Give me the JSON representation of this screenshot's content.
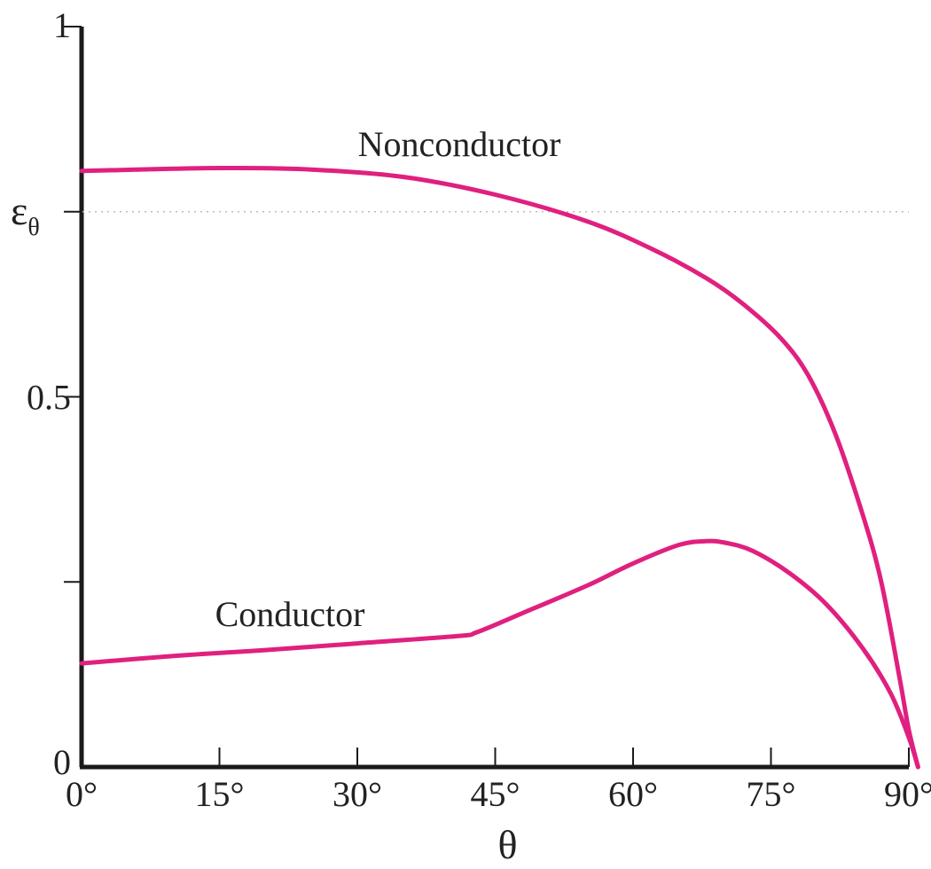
{
  "chart_data": {
    "type": "line",
    "title": "",
    "xlabel": "θ",
    "ylabel": "",
    "xlim": [
      0,
      90
    ],
    "ylim": [
      0,
      1
    ],
    "x_tick_labels": [
      "0°",
      "15°",
      "30°",
      "45°",
      "60°",
      "75°",
      "90°"
    ],
    "x_tick_values": [
      0,
      15,
      30,
      45,
      60,
      75,
      90
    ],
    "y_tick_labels": [
      "0",
      "0.5",
      "1"
    ],
    "y_tick_values": [
      0,
      0.5,
      1
    ],
    "y_extra_ticks": [
      0.25
    ],
    "reference_line": {
      "label": "ε",
      "subscript": "θ",
      "value": 0.75,
      "style": "dotted"
    },
    "grid": false,
    "legend": "none",
    "line_color": "#e0207f",
    "series": [
      {
        "name": "Nonconductor",
        "x": [
          0,
          10,
          16,
          25,
          35,
          45,
          55,
          62,
          68,
          72,
          76,
          79,
          82,
          85,
          87,
          89,
          90,
          91
        ],
        "y": [
          0.805,
          0.808,
          0.809,
          0.807,
          0.797,
          0.773,
          0.737,
          0.7,
          0.66,
          0.625,
          0.58,
          0.53,
          0.45,
          0.34,
          0.25,
          0.12,
          0.05,
          0.0
        ]
      },
      {
        "name": "Conductor",
        "x": [
          0,
          10,
          20,
          30,
          41,
          43,
          48,
          55,
          60,
          65,
          68,
          70,
          73,
          77,
          81,
          85,
          88,
          90,
          91
        ],
        "y": [
          0.14,
          0.15,
          0.158,
          0.167,
          0.177,
          0.182,
          0.208,
          0.245,
          0.275,
          0.3,
          0.305,
          0.303,
          0.292,
          0.262,
          0.22,
          0.16,
          0.1,
          0.04,
          0.0
        ]
      }
    ]
  }
}
